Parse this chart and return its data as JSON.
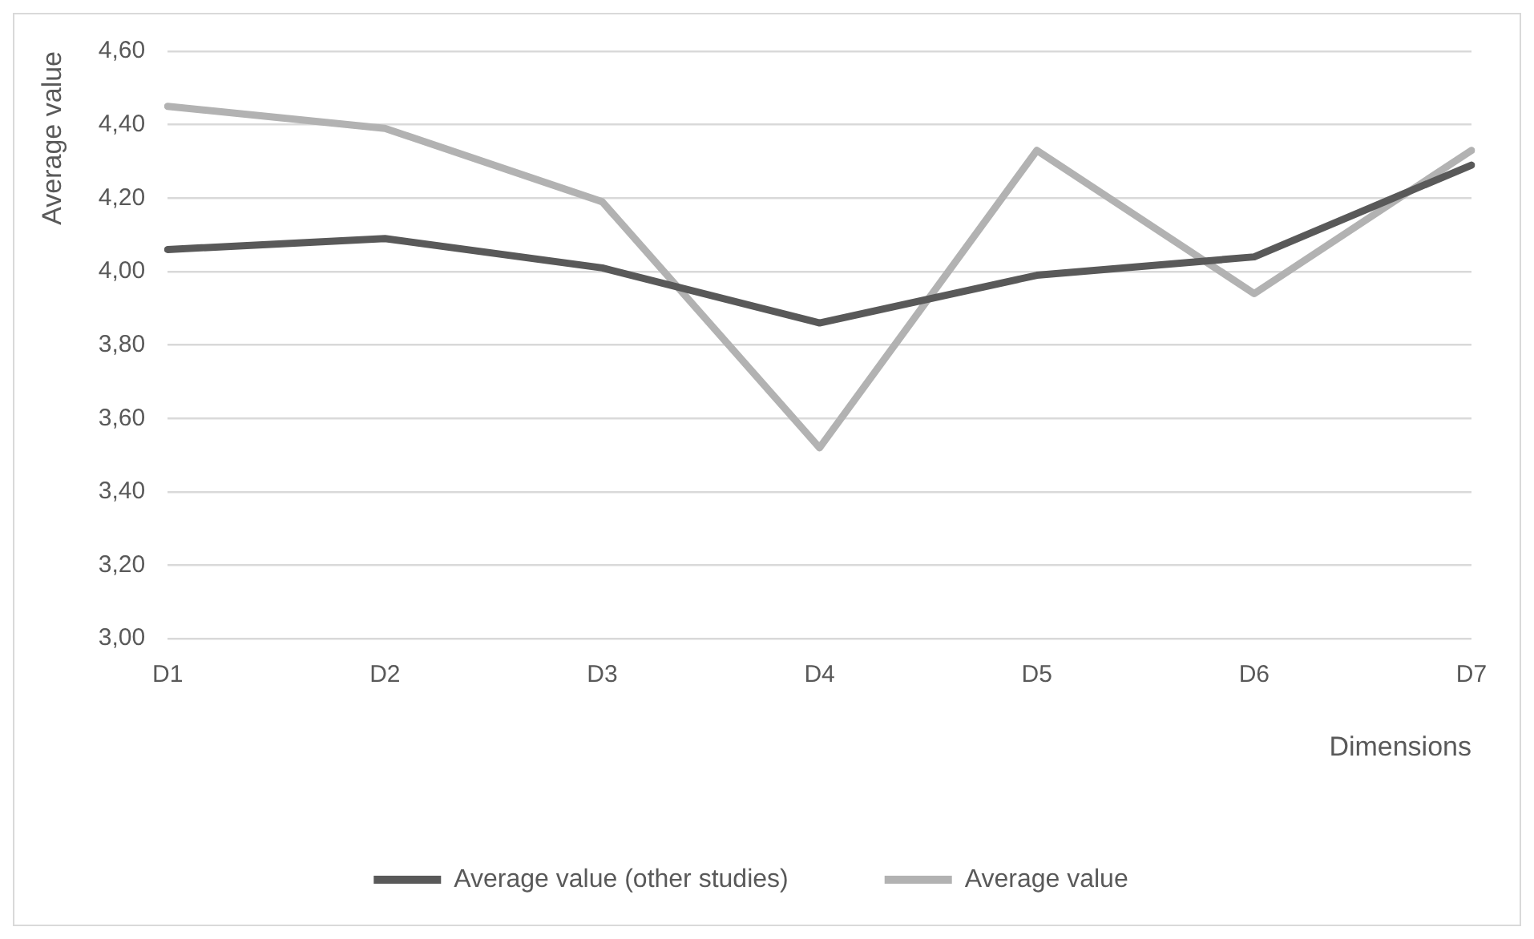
{
  "chart_data": {
    "type": "line",
    "xlabel": "Dimensions",
    "ylabel": "Average value",
    "categories": [
      "D1",
      "D2",
      "D3",
      "D4",
      "D5",
      "D6",
      "D7"
    ],
    "series": [
      {
        "name": "Average value (other studies)",
        "color": "#595959",
        "values": [
          4.06,
          4.09,
          4.01,
          3.86,
          3.99,
          4.04,
          4.29
        ]
      },
      {
        "name": "Average value",
        "color": "#b2b2b2",
        "values": [
          4.45,
          4.39,
          4.19,
          3.52,
          4.33,
          3.94,
          4.33
        ]
      }
    ],
    "ylim": [
      3.0,
      4.6
    ],
    "yticks": [
      {
        "value": 3.0,
        "label": "3,00"
      },
      {
        "value": 3.2,
        "label": "3,20"
      },
      {
        "value": 3.4,
        "label": "3,40"
      },
      {
        "value": 3.6,
        "label": "3,60"
      },
      {
        "value": 3.8,
        "label": "3,80"
      },
      {
        "value": 4.0,
        "label": "4,00"
      },
      {
        "value": 4.2,
        "label": "4,20"
      },
      {
        "value": 4.4,
        "label": "4,40"
      },
      {
        "value": 4.6,
        "label": "4,60"
      }
    ],
    "grid": "y",
    "legend": "bottom",
    "marker": "none",
    "line_style": "solid"
  }
}
